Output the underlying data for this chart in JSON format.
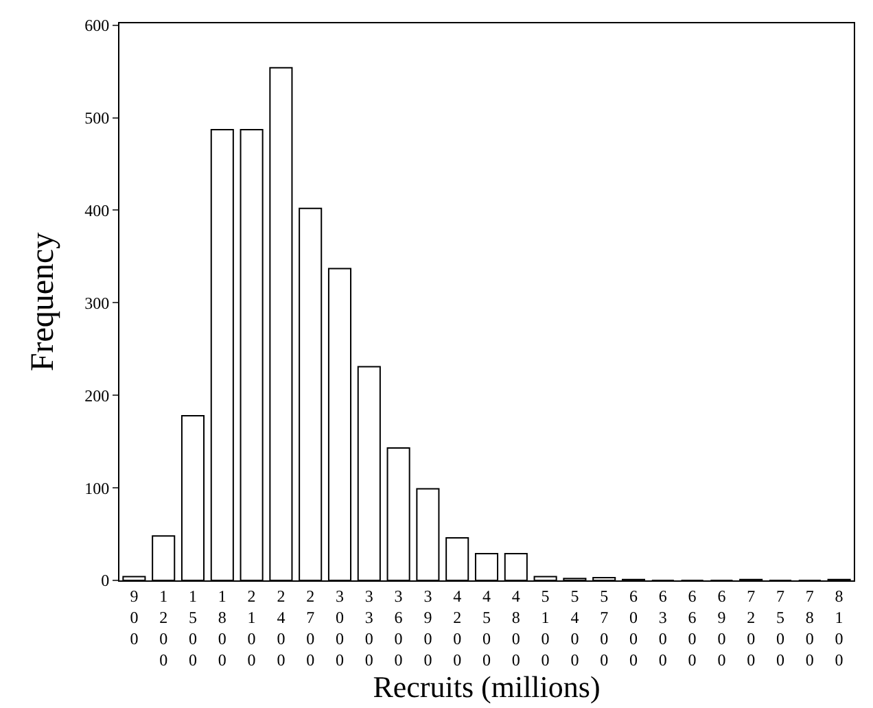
{
  "chart_data": {
    "type": "bar",
    "xlabel": "Recruits (millions)",
    "ylabel": "Frequency",
    "categories": [
      "900",
      "1200",
      "1500",
      "1800",
      "2100",
      "2400",
      "2700",
      "3000",
      "3300",
      "3600",
      "3900",
      "4200",
      "4500",
      "4800",
      "5100",
      "5400",
      "5700",
      "6000",
      "6300",
      "6600",
      "6900",
      "7200",
      "7500",
      "7800",
      "8100"
    ],
    "values": [
      4,
      48,
      178,
      487,
      487,
      554,
      402,
      337,
      231,
      143,
      99,
      46,
      29,
      29,
      4,
      2,
      3,
      1,
      0,
      0,
      0,
      1,
      0,
      0,
      1
    ],
    "color": "#ffffff",
    "ylim": [
      0,
      602
    ],
    "yticks": [
      0,
      100,
      200,
      300,
      400,
      500,
      600
    ],
    "legend": false
  }
}
